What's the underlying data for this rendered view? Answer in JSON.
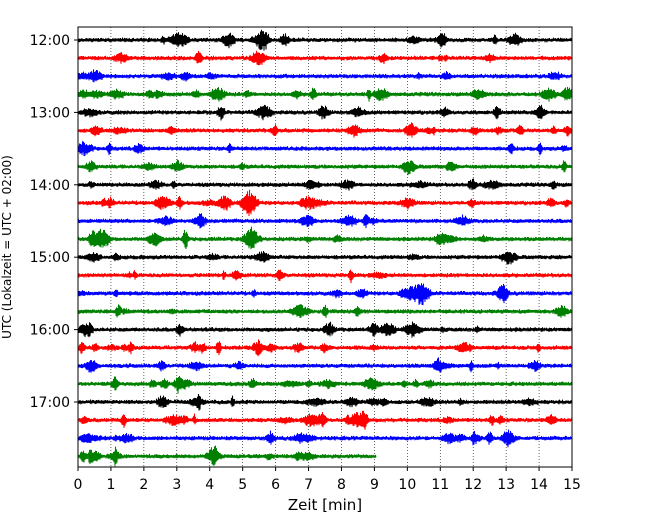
{
  "chart_data": {
    "type": "line",
    "title": "",
    "xlabel": "Zeit  [min]",
    "ylabel": "UTC (Lokalzeit = UTC + 02:00)",
    "xlim": [
      0,
      15
    ],
    "x_ticks": [
      "0",
      "1",
      "2",
      "3",
      "4",
      "5",
      "6",
      "7",
      "8",
      "9",
      "10",
      "11",
      "12",
      "13",
      "14",
      "15"
    ],
    "y_ticks": [
      {
        "label": "12:00",
        "row": 0
      },
      {
        "label": "13:00",
        "row": 4
      },
      {
        "label": "14:00",
        "row": 8
      },
      {
        "label": "15:00",
        "row": 12
      },
      {
        "label": "16:00",
        "row": 16
      },
      {
        "label": "17:00",
        "row": 20
      }
    ],
    "grid": {
      "x": true,
      "y": false,
      "style": "dotted"
    },
    "trace_interval_min": 15,
    "colors": [
      "#000000",
      "#ff0000",
      "#0000ff",
      "#008000"
    ],
    "series": [
      {
        "start": "12:00",
        "end_min": 15,
        "color": "#000000"
      },
      {
        "start": "12:15",
        "end_min": 15,
        "color": "#ff0000"
      },
      {
        "start": "12:30",
        "end_min": 15,
        "color": "#0000ff"
      },
      {
        "start": "12:45",
        "end_min": 15,
        "color": "#008000"
      },
      {
        "start": "13:00",
        "end_min": 15,
        "color": "#000000"
      },
      {
        "start": "13:15",
        "end_min": 15,
        "color": "#ff0000"
      },
      {
        "start": "13:30",
        "end_min": 15,
        "color": "#0000ff"
      },
      {
        "start": "13:45",
        "end_min": 15,
        "color": "#008000"
      },
      {
        "start": "14:00",
        "end_min": 15,
        "color": "#000000"
      },
      {
        "start": "14:15",
        "end_min": 15,
        "color": "#ff0000"
      },
      {
        "start": "14:30",
        "end_min": 15,
        "color": "#0000ff"
      },
      {
        "start": "14:45",
        "end_min": 15,
        "color": "#008000"
      },
      {
        "start": "15:00",
        "end_min": 15,
        "color": "#000000"
      },
      {
        "start": "15:15",
        "end_min": 15,
        "color": "#ff0000"
      },
      {
        "start": "15:30",
        "end_min": 15,
        "color": "#0000ff"
      },
      {
        "start": "15:45",
        "end_min": 15,
        "color": "#008000"
      },
      {
        "start": "16:00",
        "end_min": 15,
        "color": "#000000"
      },
      {
        "start": "16:15",
        "end_min": 15,
        "color": "#ff0000"
      },
      {
        "start": "16:30",
        "end_min": 15,
        "color": "#0000ff"
      },
      {
        "start": "16:45",
        "end_min": 15,
        "color": "#008000"
      },
      {
        "start": "17:00",
        "end_min": 15,
        "color": "#000000"
      },
      {
        "start": "17:15",
        "end_min": 15,
        "color": "#ff0000"
      },
      {
        "start": "17:30",
        "end_min": 15,
        "color": "#0000ff"
      },
      {
        "start": "17:45",
        "end_min": 9.05,
        "color": "#008000"
      }
    ]
  }
}
